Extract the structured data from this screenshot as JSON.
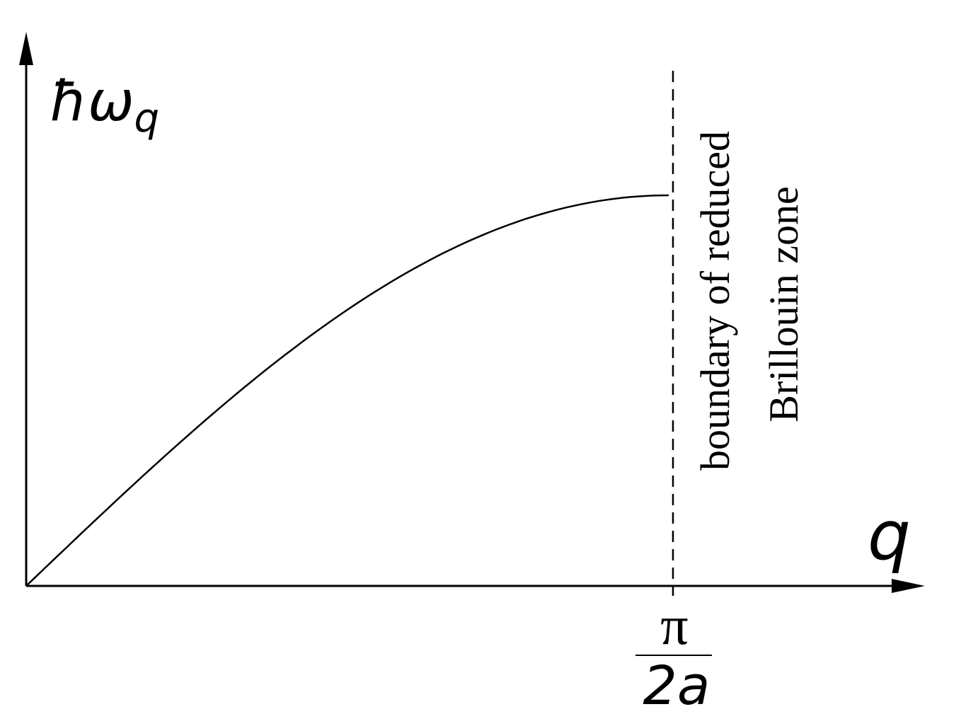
{
  "y_label": {
    "main": "ħω",
    "sub": "q"
  },
  "x_label": "q",
  "boundary_tick": {
    "numerator": "π",
    "denominator": "2a"
  },
  "annotation": {
    "line1": "boundary of reduced",
    "line2": "Brillouin zone"
  }
}
